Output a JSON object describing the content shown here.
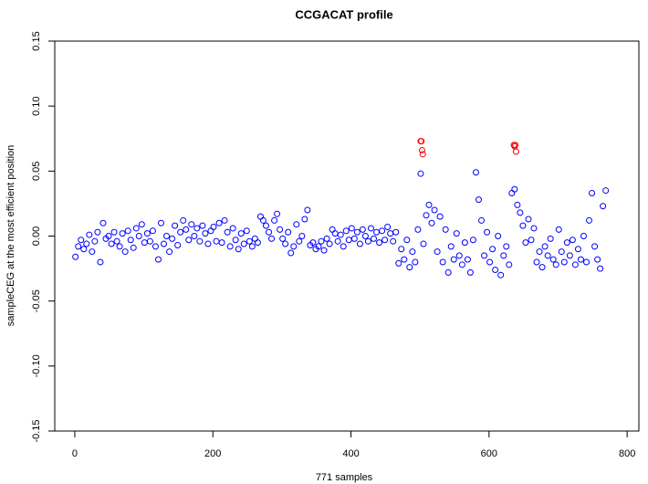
{
  "chart_data": {
    "type": "scatter",
    "title": "CCGACAT profile",
    "x_label": "771 samples",
    "y_label": "sampleCEG at the most efficient position",
    "xlim": [
      -29,
      817
    ],
    "ylim": [
      -0.15,
      0.15
    ],
    "xticks": [
      0,
      200,
      400,
      600,
      800
    ],
    "yticks": [
      -0.15,
      {
        "value": -0.1,
        "label": "-0.10"
      },
      -0.05,
      {
        "value": 0,
        "label": "0.00"
      },
      0.05,
      {
        "value": 0.1,
        "label": "0.10"
      },
      0.15
    ],
    "series": [
      {
        "color": "#0000ff",
        "x": [
          1,
          5,
          9,
          13,
          17,
          21,
          25,
          29,
          33,
          37,
          41,
          45,
          49,
          53,
          57,
          61,
          65,
          69,
          73,
          77,
          81,
          85,
          89,
          93,
          97,
          101,
          105,
          109,
          113,
          117,
          121,
          125,
          129,
          133,
          137,
          141,
          145,
          149,
          153,
          157,
          161,
          165,
          169,
          173,
          177,
          181,
          185,
          189,
          193,
          197,
          201,
          205,
          209,
          213,
          217,
          221,
          225,
          229,
          233,
          237,
          241,
          245,
          249,
          253,
          257,
          261,
          265,
          269,
          273,
          277,
          281,
          285,
          289,
          293,
          297,
          301,
          305,
          309,
          313,
          317,
          321,
          325,
          329,
          333,
          337,
          341,
          345,
          349,
          353,
          357,
          361,
          365,
          369,
          373,
          377,
          381,
          385,
          389,
          393,
          397,
          401,
          405,
          409,
          413,
          417,
          421,
          425,
          429,
          433,
          437,
          441,
          445,
          449,
          453,
          457,
          461,
          465,
          469,
          473,
          477,
          481,
          485,
          489,
          493,
          497,
          501,
          505,
          509,
          513,
          517,
          521,
          525,
          529,
          533,
          537,
          541,
          545,
          549,
          553,
          557,
          561,
          565,
          569,
          573,
          577,
          581,
          585,
          589,
          593,
          597,
          601,
          605,
          609,
          613,
          617,
          621,
          625,
          629,
          633,
          637,
          641,
          645,
          649,
          653,
          657,
          661,
          665,
          669,
          673,
          677,
          681,
          685,
          689,
          693,
          697,
          701,
          705,
          709,
          713,
          717,
          721,
          725,
          729,
          733,
          737,
          741,
          745,
          749,
          753,
          757,
          761,
          765,
          769
        ],
        "values": [
          -0.016,
          -0.008,
          -0.003,
          -0.01,
          -0.006,
          0.001,
          -0.012,
          -0.004,
          0.003,
          -0.02,
          0.01,
          -0.002,
          0.0,
          -0.006,
          0.003,
          -0.004,
          -0.008,
          0.002,
          -0.012,
          0.004,
          -0.003,
          -0.009,
          0.006,
          0.0,
          0.009,
          -0.005,
          0.002,
          -0.004,
          0.004,
          -0.008,
          -0.018,
          0.01,
          -0.006,
          0.0,
          -0.012,
          -0.002,
          0.008,
          -0.007,
          0.003,
          0.012,
          0.005,
          -0.003,
          0.009,
          0.0,
          0.006,
          -0.004,
          0.008,
          0.002,
          -0.006,
          0.004,
          0.007,
          -0.004,
          0.01,
          -0.005,
          0.012,
          0.003,
          -0.008,
          0.006,
          -0.003,
          -0.01,
          0.002,
          -0.006,
          0.004,
          -0.004,
          -0.008,
          -0.002,
          -0.005,
          0.015,
          0.012,
          0.008,
          0.003,
          -0.002,
          0.012,
          0.017,
          0.005,
          -0.002,
          -0.006,
          0.003,
          -0.013,
          -0.008,
          0.009,
          -0.004,
          0.0,
          0.013,
          0.02,
          -0.007,
          -0.005,
          -0.01,
          -0.008,
          -0.004,
          -0.011,
          -0.002,
          -0.006,
          0.005,
          0.002,
          -0.004,
          0.001,
          -0.008,
          0.004,
          -0.003,
          0.006,
          -0.002,
          0.003,
          -0.006,
          0.005,
          0.0,
          -0.004,
          0.006,
          -0.002,
          0.003,
          -0.005,
          0.004,
          -0.003,
          0.007,
          0.002,
          -0.004,
          0.003,
          -0.021,
          -0.01,
          -0.018,
          -0.003,
          -0.024,
          -0.012,
          -0.02,
          0.005,
          0.048,
          -0.006,
          0.016,
          0.024,
          0.01,
          0.02,
          -0.012,
          0.015,
          -0.02,
          0.005,
          -0.028,
          -0.008,
          -0.018,
          0.002,
          -0.015,
          -0.022,
          -0.005,
          -0.018,
          -0.028,
          -0.003,
          0.049,
          0.028,
          0.012,
          -0.015,
          0.003,
          -0.02,
          -0.01,
          -0.026,
          0.0,
          -0.03,
          -0.015,
          -0.008,
          -0.022,
          0.033,
          0.036,
          0.024,
          0.018,
          0.008,
          -0.005,
          0.013,
          -0.003,
          0.006,
          -0.02,
          -0.012,
          -0.024,
          -0.008,
          -0.015,
          -0.002,
          -0.018,
          -0.022,
          0.005,
          -0.012,
          -0.02,
          -0.005,
          -0.015,
          -0.003,
          -0.022,
          -0.01,
          -0.018,
          0.0,
          -0.02,
          0.012,
          0.033,
          -0.008,
          -0.018,
          -0.025,
          0.023,
          0.035
        ]
      },
      {
        "color": "#ff0000",
        "x": [
          501,
          502,
          503,
          504,
          636,
          637,
          638,
          639
        ],
        "values": [
          0.073,
          0.073,
          0.066,
          0.063,
          0.07,
          0.069,
          0.07,
          0.065
        ]
      }
    ]
  }
}
